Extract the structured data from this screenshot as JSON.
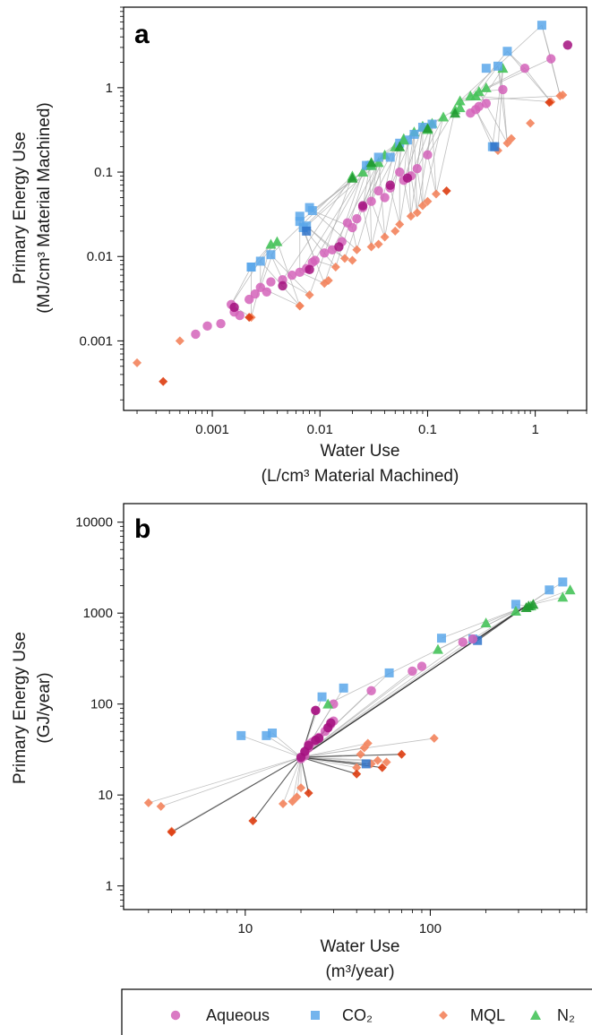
{
  "colors": {
    "aqueous": "#d463ba",
    "aqueous_dark": "#a3117f",
    "co2": "#5aa7ea",
    "co2_dark": "#2f73c9",
    "mql": "#f3835c",
    "mql_dark": "#dd3c0f",
    "n2": "#46c35a",
    "n2_dark": "#1f9a2f",
    "link": "#a8a8a8",
    "link_dark": "#333333"
  },
  "legend": [
    {
      "name": "Aqueous",
      "marker": "circle",
      "color_key": "aqueous"
    },
    {
      "name": "CO₂",
      "marker": "square",
      "color_key": "co2"
    },
    {
      "name": "MQL",
      "marker": "diamond",
      "color_key": "mql"
    },
    {
      "name": "N₂",
      "marker": "triangle",
      "color_key": "n2"
    }
  ],
  "chart_data": [
    {
      "panel": "a",
      "type": "scatter",
      "title": "",
      "xlabel": "Water Use",
      "xlabel2": "(L/cm³ Material Machined)",
      "ylabel": "Primary Energy Use",
      "ylabel2": "(MJ/cm³ Material Machined)",
      "xscale": "log",
      "yscale": "log",
      "xlim": [
        0.00015,
        3.0
      ],
      "ylim": [
        0.00015,
        9.0
      ],
      "xticks": [
        0.001,
        0.01,
        0.1,
        1
      ],
      "xticklabels": [
        "0.001",
        "0.01",
        "0.1",
        "1"
      ],
      "yticks": [
        0.001,
        0.01,
        0.1,
        1
      ],
      "yticklabels": [
        "0.001",
        "0.01",
        "0.1",
        "1"
      ],
      "grid": false,
      "groups": [
        {
          "aq": [
            0.0015,
            0.0027
          ],
          "co2": [
            0.0023,
            0.0075
          ],
          "mql": [
            0.0023,
            0.0019
          ],
          "n2": [
            0.0035,
            0.014
          ]
        },
        {
          "aq": [
            0.0028,
            0.0043
          ],
          "co2": [
            0.0028,
            0.0088
          ],
          "mql": [
            0.0065,
            0.0026
          ],
          "n2": [
            0.004,
            0.015
          ]
        },
        {
          "aq": [
            0.0045,
            0.0053
          ],
          "co2": [
            0.0035,
            0.0105
          ],
          "mql": [
            0.008,
            0.0035
          ],
          "n2": [
            0.02,
            0.09
          ]
        },
        {
          "aq": [
            0.0065,
            0.0065
          ],
          "co2": [
            0.0065,
            0.026
          ],
          "mql": [
            0.011,
            0.0048
          ],
          "n2": [
            0.025,
            0.1
          ]
        },
        {
          "aq": [
            0.009,
            0.009
          ],
          "co2": [
            0.007,
            0.022
          ],
          "mql": [
            0.014,
            0.0075
          ],
          "n2": [
            0.028,
            0.12
          ]
        },
        {
          "aq": [
            0.013,
            0.012
          ],
          "co2": [
            0.0075,
            0.023
          ],
          "mql": [
            0.017,
            0.0095
          ],
          "n2": [
            0.035,
            0.13
          ]
        },
        {
          "aq": [
            0.02,
            0.022
          ],
          "co2": [
            0.0085,
            0.035
          ],
          "mql": [
            0.022,
            0.012
          ],
          "n2": [
            0.04,
            0.16
          ]
        },
        {
          "aq": [
            0.025,
            0.038
          ],
          "co2": [
            0.029,
            0.12
          ],
          "mql": [
            0.03,
            0.013
          ],
          "n2": [
            0.05,
            0.2
          ]
        },
        {
          "aq": [
            0.03,
            0.045
          ],
          "co2": [
            0.035,
            0.15
          ],
          "mql": [
            0.04,
            0.017
          ],
          "n2": [
            0.06,
            0.25
          ]
        },
        {
          "aq": [
            0.045,
            0.065
          ],
          "co2": [
            0.055,
            0.22
          ],
          "mql": [
            0.055,
            0.024
          ],
          "n2": [
            0.075,
            0.3
          ]
        },
        {
          "aq": [
            0.06,
            0.08
          ],
          "co2": [
            0.065,
            0.24
          ],
          "mql": [
            0.07,
            0.03
          ],
          "n2": [
            0.09,
            0.35
          ]
        },
        {
          "aq": [
            0.07,
            0.09
          ],
          "co2": [
            0.075,
            0.28
          ],
          "mql": [
            0.08,
            0.033
          ],
          "n2": [
            0.11,
            0.38
          ]
        },
        {
          "aq": [
            0.08,
            0.11
          ],
          "co2": [
            0.09,
            0.34
          ],
          "mql": [
            0.09,
            0.04
          ],
          "n2": [
            0.14,
            0.45
          ]
        },
        {
          "aq": [
            0.1,
            0.16
          ],
          "co2": [
            0.11,
            0.37
          ],
          "mql": [
            0.12,
            0.055
          ],
          "n2": [
            0.18,
            0.55
          ]
        },
        {
          "aq": [
            0.28,
            0.55
          ],
          "co2": [
            0.4,
            0.2
          ],
          "mql": [
            0.45,
            0.18
          ],
          "n2": [
            0.5,
            1.7
          ]
        },
        {
          "aq": [
            0.5,
            0.95
          ],
          "co2": [
            0.45,
            1.8
          ],
          "mql": [
            0.55,
            0.22
          ],
          "n2": [
            0.3,
            0.9
          ]
        },
        {
          "aq": [
            0.8,
            1.7
          ],
          "co2": [
            0.55,
            2.7
          ],
          "mql": [
            1.4,
            0.68
          ],
          "n2": [
            0.25,
            0.8
          ]
        },
        {
          "aq": [
            1.4,
            2.2
          ],
          "co2": [
            1.15,
            5.5
          ],
          "mql": [
            1.7,
            0.8
          ],
          "n2": [
            0.2,
            0.7
          ]
        }
      ],
      "extra": {
        "aq": [
          [
            0.0007,
            0.0012
          ],
          [
            0.0009,
            0.0015
          ],
          [
            0.0012,
            0.0016
          ],
          [
            0.0016,
            0.0022
          ],
          [
            0.0018,
            0.002
          ],
          [
            0.0022,
            0.0031
          ],
          [
            0.0025,
            0.0036
          ],
          [
            0.0032,
            0.0038
          ],
          [
            0.0035,
            0.005
          ],
          [
            0.0055,
            0.006
          ],
          [
            0.0075,
            0.0072
          ],
          [
            0.0085,
            0.0085
          ],
          [
            0.011,
            0.011
          ],
          [
            0.016,
            0.015
          ],
          [
            0.018,
            0.025
          ],
          [
            0.022,
            0.028
          ],
          [
            0.035,
            0.06
          ],
          [
            0.04,
            0.05
          ],
          [
            0.055,
            0.1
          ],
          [
            0.25,
            0.5
          ],
          [
            0.3,
            0.6
          ],
          [
            0.35,
            0.65
          ]
        ],
        "aq_dark": [
          [
            0.0016,
            0.0025
          ],
          [
            0.0045,
            0.0045
          ],
          [
            0.008,
            0.007
          ],
          [
            0.015,
            0.013
          ],
          [
            0.025,
            0.04
          ],
          [
            0.045,
            0.07
          ],
          [
            0.065,
            0.085
          ],
          [
            2.0,
            3.2
          ]
        ],
        "co2": [
          [
            0.0023,
            0.0075
          ],
          [
            0.0065,
            0.03
          ],
          [
            0.008,
            0.038
          ],
          [
            0.027,
            0.12
          ],
          [
            0.045,
            0.15
          ],
          [
            0.35,
            1.7
          ]
        ],
        "co2_dark": [
          [
            0.0075,
            0.02
          ],
          [
            0.42,
            0.2
          ]
        ],
        "mql": [
          [
            0.0002,
            0.00055
          ],
          [
            0.0005,
            0.001
          ],
          [
            0.0065,
            0.0026
          ],
          [
            0.012,
            0.0052
          ],
          [
            0.02,
            0.009
          ],
          [
            0.035,
            0.014
          ],
          [
            0.05,
            0.02
          ],
          [
            0.1,
            0.045
          ],
          [
            0.6,
            0.25
          ],
          [
            0.9,
            0.38
          ],
          [
            1.8,
            0.82
          ]
        ],
        "mql_dark": [
          [
            0.00035,
            0.00033
          ],
          [
            0.0022,
            0.0019
          ],
          [
            0.15,
            0.06
          ],
          [
            1.35,
            0.67
          ]
        ],
        "n2": [
          [
            0.03,
            0.12
          ],
          [
            0.06,
            0.24
          ],
          [
            0.1,
            0.32
          ],
          [
            0.2,
            0.58
          ],
          [
            0.28,
            0.8
          ],
          [
            0.35,
            1.0
          ]
        ],
        "n2_dark": [
          [
            0.02,
            0.085
          ],
          [
            0.03,
            0.13
          ],
          [
            0.055,
            0.2
          ],
          [
            0.1,
            0.33
          ],
          [
            0.18,
            0.5
          ]
        ]
      }
    },
    {
      "panel": "b",
      "type": "scatter",
      "title": "",
      "xlabel": "Water Use",
      "xlabel2": "(m³/year)",
      "ylabel": "Primary Energy Use",
      "ylabel2": "(GJ/year)",
      "xscale": "log",
      "yscale": "log",
      "xlim": [
        2.2,
        700
      ],
      "ylim": [
        0.55,
        16000
      ],
      "xticks": [
        10,
        100
      ],
      "xticklabels": [
        "10",
        "100"
      ],
      "yticks": [
        1,
        10,
        100,
        1000,
        10000
      ],
      "yticklabels": [
        "1",
        "10",
        "100",
        "1000",
        "10000"
      ],
      "grid": false,
      "hub": [
        20,
        26
      ],
      "hub_n2": [
        330,
        1200
      ],
      "series": {
        "aq": [
          [
            20,
            25
          ],
          [
            21,
            27
          ],
          [
            21,
            30
          ],
          [
            22,
            33
          ],
          [
            22,
            36
          ],
          [
            23,
            38
          ],
          [
            24,
            40
          ],
          [
            25,
            43
          ],
          [
            27,
            50
          ],
          [
            28,
            55
          ],
          [
            29,
            60
          ],
          [
            30,
            65
          ],
          [
            24,
            85
          ],
          [
            30,
            100
          ],
          [
            48,
            140
          ],
          [
            80,
            230
          ],
          [
            90,
            260
          ],
          [
            150,
            480
          ],
          [
            170,
            520
          ]
        ],
        "aq_dark": [
          [
            20,
            26
          ],
          [
            21,
            30
          ],
          [
            22,
            35
          ],
          [
            24,
            40
          ],
          [
            25,
            42
          ],
          [
            28,
            55
          ],
          [
            29,
            62
          ],
          [
            24,
            85
          ]
        ],
        "co2": [
          [
            9.5,
            45
          ],
          [
            13,
            45
          ],
          [
            14,
            48
          ],
          [
            26,
            120
          ],
          [
            34,
            150
          ],
          [
            60,
            220
          ],
          [
            115,
            530
          ],
          [
            170,
            520
          ],
          [
            290,
            1250
          ],
          [
            440,
            1800
          ],
          [
            520,
            2200
          ]
        ],
        "co2_dark": [
          [
            45,
            22
          ],
          [
            180,
            500
          ]
        ],
        "mql": [
          [
            3,
            8.2
          ],
          [
            3.5,
            7.5
          ],
          [
            4,
            4
          ],
          [
            16,
            8
          ],
          [
            18,
            8.5
          ],
          [
            19,
            9.5
          ],
          [
            20,
            12
          ],
          [
            40,
            20
          ],
          [
            42,
            28
          ],
          [
            44,
            33
          ],
          [
            46,
            37
          ],
          [
            48,
            22
          ],
          [
            52,
            24
          ],
          [
            58,
            23
          ],
          [
            105,
            42
          ]
        ],
        "mql_dark": [
          [
            4,
            3.9
          ],
          [
            11,
            5.2
          ],
          [
            22,
            10.5
          ],
          [
            40,
            17
          ],
          [
            55,
            20
          ],
          [
            70,
            28
          ]
        ],
        "n2": [
          [
            28,
            100
          ],
          [
            110,
            400
          ],
          [
            200,
            780
          ],
          [
            290,
            1050
          ],
          [
            350,
            1200
          ],
          [
            520,
            1500
          ],
          [
            570,
            1800
          ]
        ],
        "n2_dark": [
          [
            330,
            1150
          ],
          [
            340,
            1200
          ],
          [
            360,
            1250
          ]
        ]
      }
    }
  ]
}
